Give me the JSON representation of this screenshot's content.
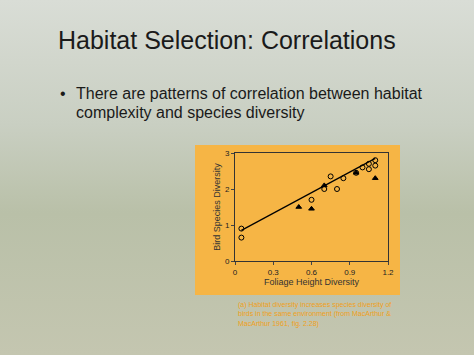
{
  "slide": {
    "title": "Habitat Selection: Correlations",
    "bullets": [
      "There are patterns of correlation between habitat complexity and species diversity"
    ],
    "caption": "(a) Habitat diversity increases species diversity of birds in the same environment (from MacArthur & MacArthur 1961, fig. 2.28)"
  },
  "chart_data": {
    "type": "scatter",
    "x_label": "Foliage Height Diversity",
    "y_label": "Bird Species Diversity",
    "xlim": [
      0,
      1.2
    ],
    "xticks": [
      0,
      0.3,
      0.6,
      0.9,
      1.2
    ],
    "ylim": [
      0,
      3
    ],
    "yticks": [
      0,
      1,
      2,
      3
    ],
    "grid": false,
    "series": [
      {
        "type": "scatter",
        "marker": "circle-open",
        "color": "#000000",
        "x": [
          0.05,
          0.05,
          0.6,
          0.7,
          0.75,
          0.8,
          0.85,
          0.95,
          1.0,
          1.05,
          1.05,
          1.1,
          1.1
        ],
        "values": [
          0.65,
          0.9,
          1.7,
          2.0,
          2.35,
          2.0,
          2.3,
          2.45,
          2.6,
          2.7,
          2.55,
          2.8,
          2.65
        ]
      },
      {
        "type": "scatter",
        "marker": "triangle-up",
        "color": "#000000",
        "x": [
          0.5,
          0.6,
          0.7,
          0.95,
          1.1
        ],
        "values": [
          1.5,
          1.45,
          2.1,
          2.45,
          2.3
        ]
      },
      {
        "type": "line",
        "line_style": "solid",
        "color": "#000000",
        "x": [
          0.05,
          1.1
        ],
        "values": [
          0.85,
          2.85
        ]
      }
    ]
  }
}
